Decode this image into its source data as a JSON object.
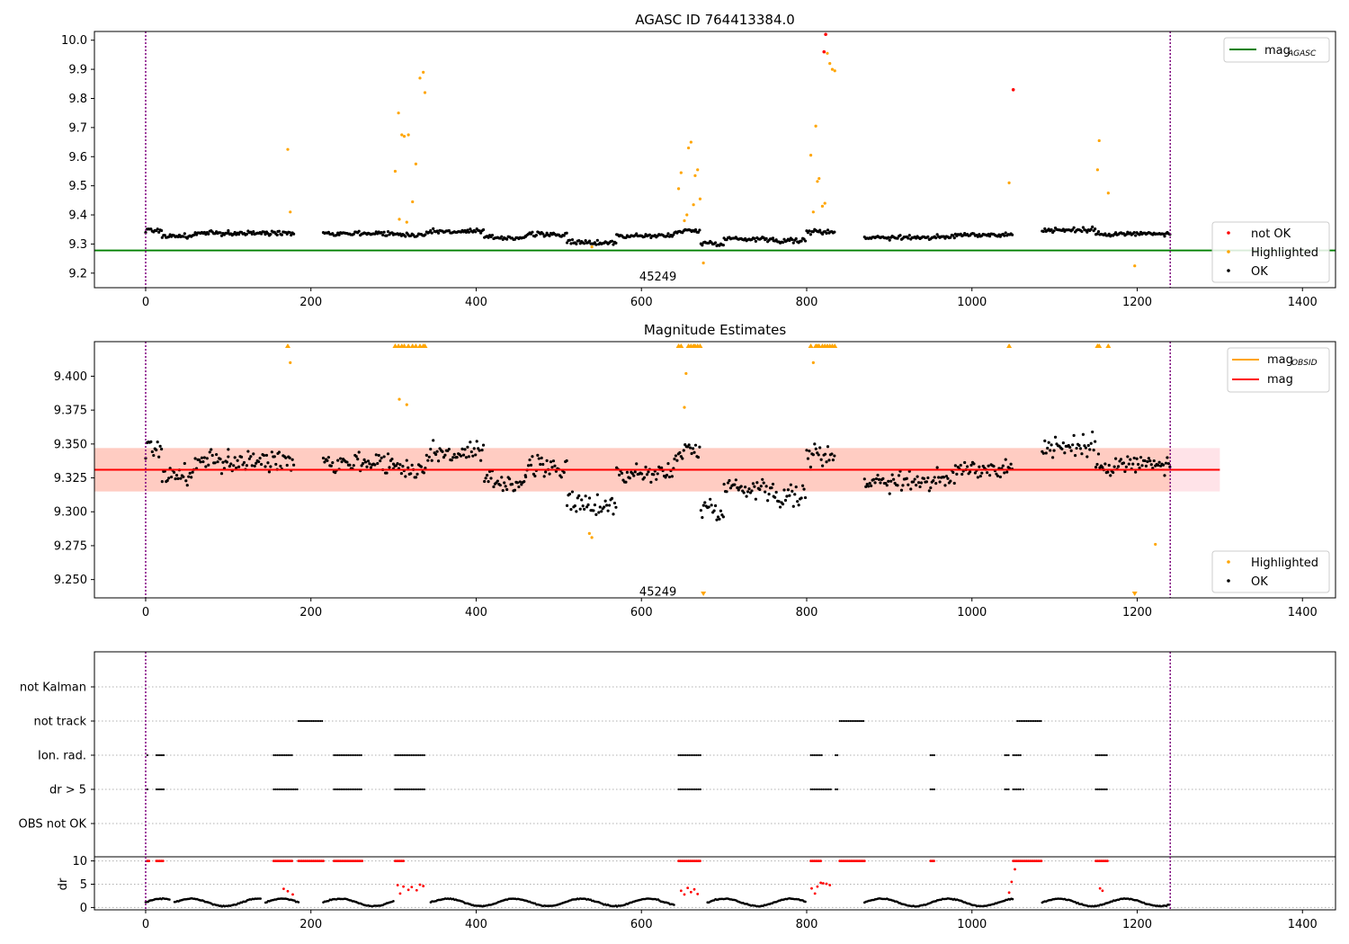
{
  "chart_data": [
    {
      "type": "scatter",
      "title": "AGASC ID 764413384.0",
      "xlim": [
        -62,
        1440
      ],
      "ylim": [
        9.15,
        10.03
      ],
      "xticks": [
        0,
        200,
        400,
        600,
        800,
        1000,
        1200,
        1400
      ],
      "yticks": [
        9.2,
        9.3,
        9.4,
        9.5,
        9.6,
        9.7,
        9.8,
        9.9,
        10.0
      ],
      "ytick_labels": [
        "9.2",
        "9.3",
        "9.4",
        "9.5",
        "9.6",
        "9.7",
        "9.8",
        "9.9",
        "10.0"
      ],
      "vlines": [
        0,
        1240
      ],
      "annotation": {
        "text": "45249",
        "x": 620,
        "y": 9.19
      },
      "hline": {
        "name": "mag AGASC",
        "y": 9.278
      },
      "legend_top": [
        {
          "label": "mag",
          "sub": "AGASC",
          "color": "#008000"
        }
      ],
      "legend_bottom": [
        {
          "label": "not OK",
          "color": "#ff0000"
        },
        {
          "label": "Highlighted",
          "color": "#ffa500"
        },
        {
          "label": "OK",
          "color": "#000000"
        }
      ],
      "ok_segments": [
        {
          "x0": 0,
          "x1": 20,
          "y": 9.347
        },
        {
          "x0": 20,
          "x1": 60,
          "y": 9.327
        },
        {
          "x0": 60,
          "x1": 100,
          "y": 9.337
        },
        {
          "x0": 100,
          "x1": 160,
          "y": 9.337
        },
        {
          "x0": 160,
          "x1": 180,
          "y": 9.34
        },
        {
          "x0": 215,
          "x1": 300,
          "y": 9.337
        },
        {
          "x0": 300,
          "x1": 340,
          "y": 9.332
        },
        {
          "x0": 340,
          "x1": 410,
          "y": 9.343
        },
        {
          "x0": 410,
          "x1": 460,
          "y": 9.322
        },
        {
          "x0": 460,
          "x1": 510,
          "y": 9.333
        },
        {
          "x0": 510,
          "x1": 570,
          "y": 9.305
        },
        {
          "x0": 570,
          "x1": 640,
          "y": 9.328
        },
        {
          "x0": 640,
          "x1": 672,
          "y": 9.345
        },
        {
          "x0": 672,
          "x1": 700,
          "y": 9.303
        },
        {
          "x0": 700,
          "x1": 760,
          "y": 9.318
        },
        {
          "x0": 760,
          "x1": 800,
          "y": 9.312
        },
        {
          "x0": 800,
          "x1": 835,
          "y": 9.342
        },
        {
          "x0": 870,
          "x1": 950,
          "y": 9.323
        },
        {
          "x0": 950,
          "x1": 980,
          "y": 9.323
        },
        {
          "x0": 980,
          "x1": 1050,
          "y": 9.332
        },
        {
          "x0": 1085,
          "x1": 1150,
          "y": 9.348
        },
        {
          "x0": 1150,
          "x1": 1240,
          "y": 9.335
        }
      ],
      "highlighted_points": [
        [
          172,
          9.625
        ],
        [
          175,
          9.41
        ],
        [
          302,
          9.55
        ],
        [
          306,
          9.75
        ],
        [
          307,
          9.385
        ],
        [
          310,
          9.675
        ],
        [
          313,
          9.67
        ],
        [
          316,
          9.375
        ],
        [
          318,
          9.675
        ],
        [
          323,
          9.445
        ],
        [
          327,
          9.575
        ],
        [
          332,
          9.87
        ],
        [
          336,
          9.89
        ],
        [
          338,
          9.82
        ],
        [
          540,
          9.29
        ],
        [
          645,
          9.49
        ],
        [
          648,
          9.545
        ],
        [
          652,
          9.38
        ],
        [
          655,
          9.4
        ],
        [
          657,
          9.63
        ],
        [
          660,
          9.65
        ],
        [
          663,
          9.435
        ],
        [
          665,
          9.535
        ],
        [
          668,
          9.555
        ],
        [
          671,
          9.455
        ],
        [
          675,
          9.235
        ],
        [
          805,
          9.605
        ],
        [
          808,
          9.41
        ],
        [
          811,
          9.705
        ],
        [
          813,
          9.515
        ],
        [
          815,
          9.525
        ],
        [
          819,
          9.43
        ],
        [
          822,
          9.44
        ],
        [
          825,
          9.955
        ],
        [
          828,
          9.92
        ],
        [
          831,
          9.9
        ],
        [
          834,
          9.895
        ],
        [
          1045,
          9.51
        ],
        [
          1152,
          9.555
        ],
        [
          1154,
          9.655
        ],
        [
          1165,
          9.475
        ],
        [
          1197,
          9.225
        ]
      ],
      "notok_points": [
        [
          821,
          9.96
        ],
        [
          823,
          10.02
        ],
        [
          1050,
          9.83
        ]
      ]
    },
    {
      "type": "scatter",
      "title": "Magnitude Estimates",
      "xlim": [
        -62,
        1440
      ],
      "ylim": [
        9.2365,
        9.4255
      ],
      "xticks": [
        0,
        200,
        400,
        600,
        800,
        1000,
        1200,
        1400
      ],
      "yticks": [
        9.25,
        9.275,
        9.3,
        9.325,
        9.35,
        9.375,
        9.4
      ],
      "ytick_labels": [
        "9.250",
        "9.275",
        "9.300",
        "9.325",
        "9.350",
        "9.375",
        "9.400"
      ],
      "vlines": [
        0,
        1240
      ],
      "annotation": {
        "text": "45249",
        "x": 620,
        "y": 9.2415
      },
      "mag_line": {
        "y": 9.331,
        "x0": -62,
        "x1": 1300
      },
      "band_outer": {
        "y0": 9.315,
        "y1": 9.347,
        "x0": -62,
        "x1": 1300
      },
      "band_obsid": {
        "y0": 9.315,
        "y1": 9.347,
        "x0": -62,
        "x1": 1240
      },
      "obsid_line": {
        "y": 9.331,
        "x0": 0,
        "x1": 1240
      },
      "legend_top": [
        {
          "label": "mag",
          "sub": "OBSID",
          "color": "#ffa500"
        },
        {
          "label": "mag",
          "sub": "",
          "color": "#ff0000"
        }
      ],
      "legend_bottom": [
        {
          "label": "Highlighted",
          "color": "#ffa500"
        },
        {
          "label": "OK",
          "color": "#000000"
        }
      ],
      "ok_segments": [
        {
          "x0": 0,
          "x1": 20,
          "y": 9.347
        },
        {
          "x0": 20,
          "x1": 60,
          "y": 9.327
        },
        {
          "x0": 60,
          "x1": 100,
          "y": 9.337
        },
        {
          "x0": 100,
          "x1": 160,
          "y": 9.337
        },
        {
          "x0": 160,
          "x1": 180,
          "y": 9.34
        },
        {
          "x0": 215,
          "x1": 300,
          "y": 9.337
        },
        {
          "x0": 300,
          "x1": 340,
          "y": 9.332
        },
        {
          "x0": 340,
          "x1": 410,
          "y": 9.343
        },
        {
          "x0": 410,
          "x1": 460,
          "y": 9.322
        },
        {
          "x0": 460,
          "x1": 510,
          "y": 9.333
        },
        {
          "x0": 510,
          "x1": 570,
          "y": 9.305
        },
        {
          "x0": 570,
          "x1": 640,
          "y": 9.328
        },
        {
          "x0": 640,
          "x1": 672,
          "y": 9.345
        },
        {
          "x0": 672,
          "x1": 700,
          "y": 9.303
        },
        {
          "x0": 700,
          "x1": 760,
          "y": 9.318
        },
        {
          "x0": 760,
          "x1": 800,
          "y": 9.312
        },
        {
          "x0": 800,
          "x1": 835,
          "y": 9.342
        },
        {
          "x0": 870,
          "x1": 950,
          "y": 9.323
        },
        {
          "x0": 950,
          "x1": 980,
          "y": 9.323
        },
        {
          "x0": 980,
          "x1": 1050,
          "y": 9.332
        },
        {
          "x0": 1085,
          "x1": 1150,
          "y": 9.348
        },
        {
          "x0": 1150,
          "x1": 1240,
          "y": 9.335
        }
      ],
      "highlighted_points": [
        [
          175,
          9.41
        ],
        [
          307,
          9.383
        ],
        [
          316,
          9.379
        ],
        [
          537,
          9.284
        ],
        [
          540,
          9.281
        ],
        [
          654,
          9.402
        ],
        [
          652,
          9.377
        ],
        [
          808,
          9.41
        ],
        [
          1222,
          9.276
        ]
      ],
      "markers_up": [
        172,
        302,
        306,
        310,
        313,
        318,
        323,
        327,
        332,
        336,
        338,
        645,
        648,
        657,
        660,
        663,
        665,
        668,
        671,
        805,
        811,
        813,
        815,
        819,
        822,
        825,
        828,
        831,
        834,
        1045,
        1152,
        1154,
        1165
      ],
      "markers_down": [
        675,
        1197
      ]
    },
    {
      "type": "scatter",
      "title": "",
      "xlim": [
        -62,
        1440
      ],
      "xticks": [
        0,
        200,
        400,
        600,
        800,
        1000,
        1200,
        1400
      ],
      "vlines": [
        0,
        1240
      ],
      "flag_rows": [
        "not Kalman",
        "not track",
        "Ion. rad.",
        "dr > 5",
        "OBS not OK"
      ],
      "flags": {
        "not track": [
          [
            185,
            215
          ],
          [
            840,
            870
          ],
          [
            1055,
            1085
          ]
        ],
        "Ion. rad.": [
          [
            2,
            4
          ],
          [
            13,
            22
          ],
          [
            155,
            178
          ],
          [
            228,
            262
          ],
          [
            302,
            338
          ],
          [
            645,
            672
          ],
          [
            805,
            820
          ],
          [
            835,
            838
          ],
          [
            950,
            955
          ],
          [
            1040,
            1045
          ],
          [
            1050,
            1060
          ],
          [
            1150,
            1165
          ]
        ],
        "dr > 5": [
          [
            2,
            4
          ],
          [
            13,
            22
          ],
          [
            155,
            185
          ],
          [
            228,
            262
          ],
          [
            302,
            338
          ],
          [
            645,
            672
          ],
          [
            805,
            830
          ],
          [
            835,
            838
          ],
          [
            950,
            955
          ],
          [
            1040,
            1045
          ],
          [
            1050,
            1060
          ],
          [
            1062,
            1064
          ],
          [
            1150,
            1165
          ]
        ]
      },
      "dr_ylim": [
        -0.5,
        10.5
      ],
      "dr_yticks": [
        0,
        5,
        10
      ],
      "dr_ylabel": "dr",
      "dr_clip_ranges": [
        [
          2,
          4
        ],
        [
          13,
          22
        ],
        [
          155,
          178
        ],
        [
          185,
          215
        ],
        [
          228,
          262
        ],
        [
          302,
          312
        ],
        [
          645,
          672
        ],
        [
          805,
          818
        ],
        [
          840,
          870
        ],
        [
          950,
          955
        ],
        [
          1050,
          1085
        ],
        [
          1150,
          1165
        ]
      ],
      "dr_highlight": [
        [
          167,
          4.0
        ],
        [
          172,
          3.5
        ],
        [
          178,
          2.8
        ],
        [
          305,
          4.8
        ],
        [
          308,
          3.0
        ],
        [
          312,
          4.5
        ],
        [
          318,
          3.8
        ],
        [
          322,
          4.4
        ],
        [
          328,
          3.7
        ],
        [
          332,
          4.9
        ],
        [
          336,
          4.6
        ],
        [
          648,
          3.6
        ],
        [
          652,
          2.8
        ],
        [
          656,
          4.2
        ],
        [
          660,
          3.3
        ],
        [
          664,
          3.9
        ],
        [
          668,
          2.9
        ],
        [
          806,
          4.1
        ],
        [
          810,
          3.0
        ],
        [
          813,
          4.5
        ],
        [
          817,
          5.3
        ],
        [
          820,
          5.2
        ],
        [
          824,
          5.1
        ],
        [
          828,
          4.8
        ],
        [
          1045,
          3.2
        ],
        [
          1048,
          5.5
        ],
        [
          1052,
          8.2
        ],
        [
          1155,
          4.1
        ],
        [
          1158,
          3.6
        ]
      ],
      "dr_segments": [
        [
          0,
          30
        ],
        [
          35,
          140
        ],
        [
          145,
          185
        ],
        [
          215,
          300
        ],
        [
          345,
          640
        ],
        [
          680,
          800
        ],
        [
          870,
          1050
        ],
        [
          1085,
          1240
        ]
      ]
    }
  ]
}
